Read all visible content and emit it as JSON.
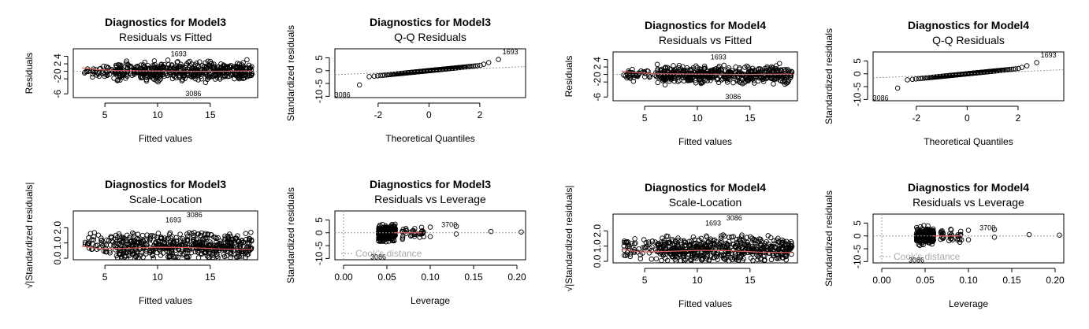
{
  "chart_data": [
    {
      "type": "scatter",
      "panel": "resid-fitted",
      "title": "Diagnostics for Model3",
      "subtitle": "Residuals vs Fitted",
      "xlabel": "Fitted values",
      "ylabel": "Residuals",
      "xlim": [
        2,
        19.5
      ],
      "ylim": [
        -7,
        6
      ],
      "xticks": [
        5,
        10,
        15
      ],
      "yticks": [
        -6,
        -2,
        0,
        2,
        4
      ],
      "cloud": [
        {
          "x0": 3,
          "x1": 6,
          "y": 0,
          "spread": 1.5
        },
        {
          "x0": 6,
          "x1": 19,
          "y": 0,
          "spread": 2.4
        }
      ],
      "smooth": [
        [
          2.8,
          0.9
        ],
        [
          4,
          0.5
        ],
        [
          6,
          0.2
        ],
        [
          10,
          0.1
        ],
        [
          14,
          0.0
        ],
        [
          19,
          0.1
        ]
      ],
      "annotations": [
        {
          "text": "1693",
          "x": 12,
          "y": 4.6
        },
        {
          "text": "3086",
          "x": 13.4,
          "y": -5.9
        }
      ]
    },
    {
      "type": "scatter",
      "panel": "qq",
      "title": "Diagnostics for Model3",
      "subtitle": "Q-Q Residuals",
      "xlabel": "Theoretical Quantiles",
      "ylabel": "Standardized residuals",
      "xlim": [
        -3.7,
        3.8
      ],
      "ylim": [
        -10.5,
        8.5
      ],
      "xticks": [
        -2,
        0,
        2
      ],
      "yticks": [
        -10,
        -5,
        0,
        5
      ],
      "qq_line": [
        [
          -3.7,
          -1.6
        ],
        [
          3.8,
          1.6
        ]
      ],
      "annotations": [
        {
          "text": "1693",
          "x": 3.2,
          "y": 7.3
        },
        {
          "text": "3086",
          "x": -3.4,
          "y": -9.5
        }
      ]
    },
    {
      "type": "scatter",
      "panel": "resid-fitted",
      "title": "Diagnostics for Model4",
      "subtitle": "Residuals vs Fitted",
      "xlabel": "Fitted values",
      "ylabel": "Residuals",
      "xlim": [
        2,
        19.5
      ],
      "ylim": [
        -7,
        6
      ],
      "xticks": [
        5,
        10,
        15
      ],
      "yticks": [
        -6,
        -2,
        0,
        2,
        4
      ],
      "cloud": [
        {
          "x0": 3,
          "x1": 6,
          "y": 0,
          "spread": 1.5
        },
        {
          "x0": 6,
          "x1": 19,
          "y": 0,
          "spread": 2.4
        }
      ],
      "smooth": [
        [
          2.8,
          0.9
        ],
        [
          4,
          0.5
        ],
        [
          6,
          0.2
        ],
        [
          10,
          0.1
        ],
        [
          14,
          0.0
        ],
        [
          19,
          0.1
        ]
      ],
      "annotations": [
        {
          "text": "1693",
          "x": 12,
          "y": 4.6
        },
        {
          "text": "3086",
          "x": 13.4,
          "y": -5.9
        }
      ]
    },
    {
      "type": "scatter",
      "panel": "qq",
      "title": "Diagnostics for Model4",
      "subtitle": "Q-Q Residuals",
      "xlabel": "Theoretical Quantiles",
      "ylabel": "Standardized residuals",
      "xlim": [
        -3.7,
        3.8
      ],
      "ylim": [
        -10.5,
        8.5
      ],
      "xticks": [
        -2,
        0,
        2
      ],
      "yticks": [
        -10,
        -5,
        0,
        5
      ],
      "qq_line": [
        [
          -3.7,
          -1.6
        ],
        [
          3.8,
          1.6
        ]
      ],
      "annotations": [
        {
          "text": "1693",
          "x": 3.2,
          "y": 7.3
        },
        {
          "text": "3086",
          "x": -3.4,
          "y": -9.5
        }
      ]
    },
    {
      "type": "scatter",
      "panel": "scale-location",
      "title": "Diagnostics for Model3",
      "subtitle": "Scale-Location",
      "xlabel": "Fitted values",
      "ylabel": "√|Standardized residuals|",
      "xlim": [
        2,
        19.5
      ],
      "ylim": [
        -0.1,
        3.1
      ],
      "xticks": [
        5,
        10,
        15
      ],
      "yticks": [
        0.0,
        1.0,
        2.0
      ],
      "yticklabels": [
        "0.0",
        "1.0",
        "2.0"
      ],
      "cloud": [
        {
          "x0": 3,
          "x1": 6,
          "y": 0.9,
          "spread": 0.85
        },
        {
          "x0": 6,
          "x1": 19,
          "y": 0.8,
          "spread": 1.0
        }
      ],
      "smooth": [
        [
          2.8,
          0.8
        ],
        [
          4.5,
          0.62
        ],
        [
          7,
          0.65
        ],
        [
          10,
          0.72
        ],
        [
          13,
          0.7
        ],
        [
          16,
          0.6
        ],
        [
          19,
          0.58
        ]
      ],
      "annotations": [
        {
          "text": "1693",
          "x": 11.5,
          "y": 2.5
        },
        {
          "text": "3086",
          "x": 13.5,
          "y": 2.85
        }
      ]
    },
    {
      "type": "scatter",
      "panel": "resid-leverage",
      "title": "Diagnostics for Model3",
      "subtitle": "Residuals vs Leverage",
      "xlabel": "Leverage",
      "ylabel": "Standardized residuals",
      "xlim": [
        -0.01,
        0.21
      ],
      "ylim": [
        -10.5,
        8.5
      ],
      "xticks": [
        0.0,
        0.05,
        0.1,
        0.15,
        0.2
      ],
      "xticklabels": [
        "0.00",
        "0.05",
        "0.10",
        "0.15",
        "0.20"
      ],
      "yticks": [
        -10,
        -5,
        0,
        5
      ],
      "cooks_label": "Cook's distance",
      "extra_points": [
        [
          0.1,
          2.2
        ],
        [
          0.1,
          -1.5
        ],
        [
          0.13,
          2.5
        ],
        [
          0.13,
          -0.5
        ],
        [
          0.17,
          0.5
        ],
        [
          0.205,
          0.3
        ]
      ],
      "annotations": [
        {
          "text": "3700",
          "x": 0.122,
          "y": 3.2
        },
        {
          "text": "3086",
          "x": 0.04,
          "y": -9.5
        }
      ]
    },
    {
      "type": "scatter",
      "panel": "scale-location",
      "title": "Diagnostics for Model4",
      "subtitle": "Scale-Location",
      "xlabel": "Fitted values",
      "ylabel": "√|Standardized residuals|",
      "xlim": [
        2,
        19.5
      ],
      "ylim": [
        -0.1,
        3.1
      ],
      "xticks": [
        5,
        10,
        15
      ],
      "yticks": [
        0.0,
        1.0,
        2.0
      ],
      "yticklabels": [
        "0.0",
        "1.0",
        "2.0"
      ],
      "cloud": [
        {
          "x0": 3,
          "x1": 6,
          "y": 0.9,
          "spread": 0.85
        },
        {
          "x0": 6,
          "x1": 19,
          "y": 0.8,
          "spread": 1.0
        }
      ],
      "smooth": [
        [
          2.8,
          0.8
        ],
        [
          4.5,
          0.62
        ],
        [
          7,
          0.65
        ],
        [
          10,
          0.72
        ],
        [
          13,
          0.7
        ],
        [
          16,
          0.6
        ],
        [
          19,
          0.58
        ]
      ],
      "annotations": [
        {
          "text": "1693",
          "x": 11.5,
          "y": 2.5
        },
        {
          "text": "3086",
          "x": 13.5,
          "y": 2.85
        }
      ]
    },
    {
      "type": "scatter",
      "panel": "resid-leverage",
      "title": "Diagnostics for Model4",
      "subtitle": "Residuals vs Leverage",
      "xlabel": "Leverage",
      "ylabel": "Standardized residuals",
      "xlim": [
        -0.01,
        0.21
      ],
      "ylim": [
        -10.5,
        8.5
      ],
      "xticks": [
        0.0,
        0.05,
        0.1,
        0.15,
        0.2
      ],
      "xticklabels": [
        "0.00",
        "0.05",
        "0.10",
        "0.15",
        "0.20"
      ],
      "yticks": [
        -10,
        -5,
        0,
        5
      ],
      "cooks_label": "Cook's distance",
      "extra_points": [
        [
          0.1,
          2.2
        ],
        [
          0.1,
          -1.5
        ],
        [
          0.13,
          2.5
        ],
        [
          0.13,
          -0.5
        ],
        [
          0.17,
          0.5
        ],
        [
          0.205,
          0.3
        ]
      ],
      "annotations": [
        {
          "text": "3700",
          "x": 0.122,
          "y": 3.2
        },
        {
          "text": "3086",
          "x": 0.04,
          "y": -9.5
        }
      ]
    }
  ]
}
